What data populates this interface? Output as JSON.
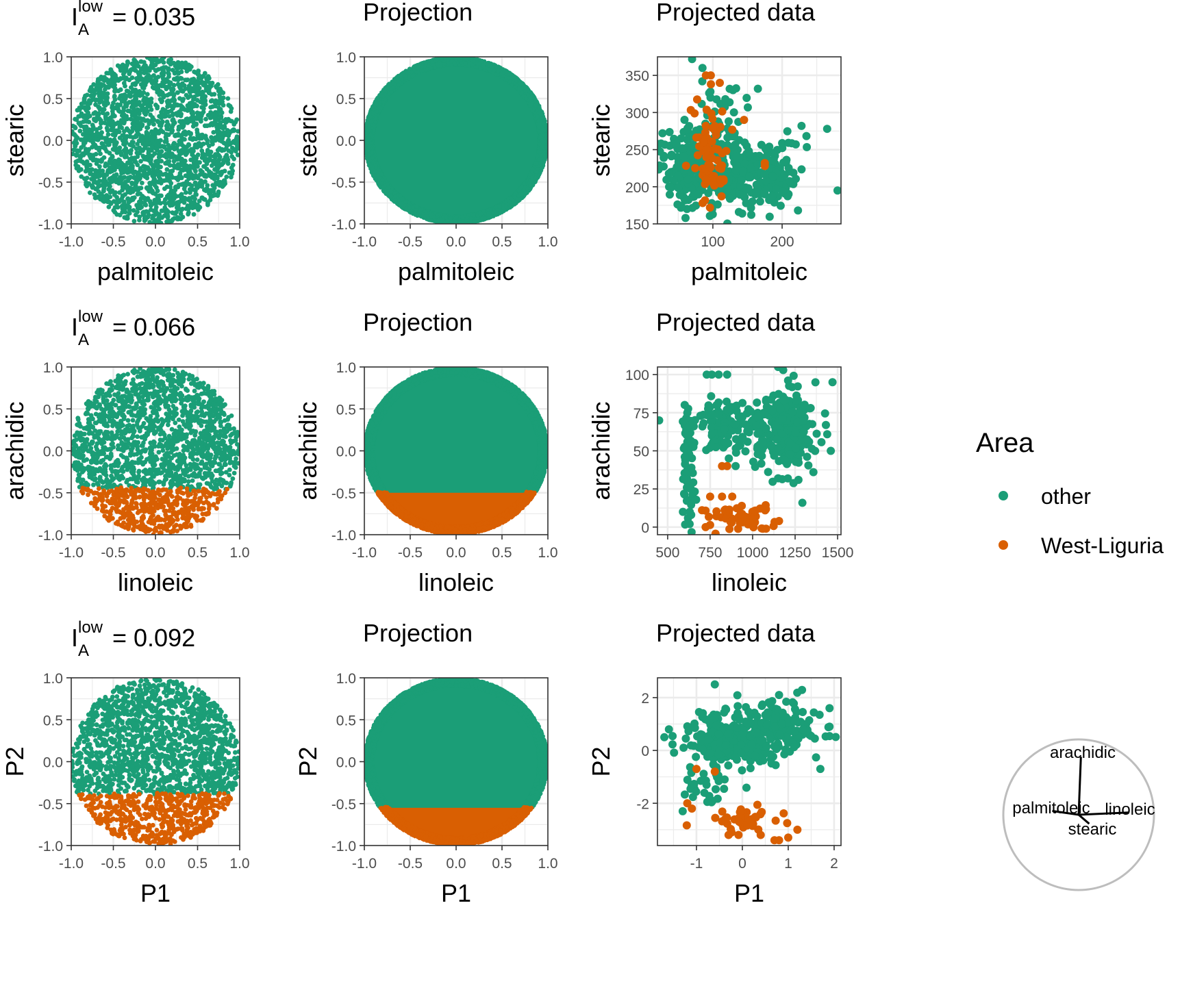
{
  "colors": {
    "other": "#1b9e77",
    "west_liguria": "#d95f02",
    "grid": "#ebebeb",
    "panel_border": "#333333",
    "axes_circle": "#bdbdbd"
  },
  "chart_data": [
    {
      "type": "scatter",
      "row": 0,
      "col": 0,
      "index_symbol": "I",
      "index_sup": "low",
      "index_sub": "A",
      "index_value": "= 0.035",
      "xlabel": "palmitoleic",
      "ylabel": "stearic",
      "xlim": [
        -1.0,
        1.0
      ],
      "ylim": [
        -1.0,
        1.0
      ],
      "xticks": [
        "-1.0",
        "-0.5",
        "0.0",
        "0.5",
        "1.0"
      ],
      "yticks": [
        "-1.0",
        "-0.5",
        "0.0",
        "0.5",
        "1.0"
      ],
      "distribution": "uniform-disk",
      "split_y": null,
      "n_points": 2200
    },
    {
      "type": "scatter",
      "row": 0,
      "col": 1,
      "title": "Projection",
      "xlabel": "palmitoleic",
      "ylabel": "stearic",
      "xlim": [
        -1.0,
        1.0
      ],
      "ylim": [
        -1.0,
        1.0
      ],
      "xticks": [
        "-1.0",
        "-0.5",
        "0.0",
        "0.5",
        "1.0"
      ],
      "yticks": [
        "-1.0",
        "-0.5",
        "0.0",
        "0.5",
        "1.0"
      ],
      "distribution": "filled-disk",
      "split_y": null,
      "n_points": 9000
    },
    {
      "type": "scatter",
      "row": 0,
      "col": 2,
      "title": "Projected data",
      "xlabel": "palmitoleic",
      "ylabel": "stearic",
      "xlim": [
        20,
        285
      ],
      "ylim": [
        150,
        375
      ],
      "xticks": [
        "100",
        "200"
      ],
      "yticks": [
        "150",
        "200",
        "250",
        "300",
        "350"
      ],
      "series": [
        {
          "name": "other",
          "color": "#1b9e77",
          "clusters": [
            {
              "cx": 70,
              "cy": 225,
              "sx": 25,
              "sy": 28,
              "n": 200
            },
            {
              "cx": 165,
              "cy": 215,
              "sx": 30,
              "sy": 25,
              "n": 220
            },
            {
              "cx": 110,
              "cy": 290,
              "sx": 25,
              "sy": 30,
              "n": 50
            }
          ],
          "points": [
            [
              70,
              372
            ],
            [
              85,
              360
            ],
            [
              118,
              318
            ],
            [
              165,
              332
            ],
            [
              228,
              282
            ],
            [
              265,
              278
            ],
            [
              280,
              195
            ]
          ]
        },
        {
          "name": "West-Liguria",
          "color": "#d95f02",
          "clusters": [
            {
              "cx": 97,
              "cy": 240,
              "sx": 12,
              "sy": 35,
              "n": 70
            }
          ],
          "points": [
            [
              90,
              350
            ],
            [
              97,
              350
            ],
            [
              110,
              340
            ],
            [
              145,
              290
            ],
            [
              175,
              228
            ],
            [
              175,
              232
            ]
          ]
        }
      ]
    },
    {
      "type": "scatter",
      "row": 1,
      "col": 0,
      "index_symbol": "I",
      "index_sup": "low",
      "index_sub": "A",
      "index_value": "= 0.066",
      "xlabel": "linoleic",
      "ylabel": "arachidic",
      "xlim": [
        -1.0,
        1.0
      ],
      "ylim": [
        -1.0,
        1.0
      ],
      "xticks": [
        "-1.0",
        "-0.5",
        "0.0",
        "0.5",
        "1.0"
      ],
      "yticks": [
        "-1.0",
        "-0.5",
        "0.0",
        "0.5",
        "1.0"
      ],
      "distribution": "uniform-disk",
      "split_y": -0.45,
      "n_points": 2200
    },
    {
      "type": "scatter",
      "row": 1,
      "col": 1,
      "title": "Projection",
      "xlabel": "linoleic",
      "ylabel": "arachidic",
      "xlim": [
        -1.0,
        1.0
      ],
      "ylim": [
        -1.0,
        1.0
      ],
      "xticks": [
        "-1.0",
        "-0.5",
        "0.0",
        "0.5",
        "1.0"
      ],
      "yticks": [
        "-1.0",
        "-0.5",
        "0.0",
        "0.5",
        "1.0"
      ],
      "distribution": "filled-disk",
      "split_y": -0.5,
      "n_points": 9000
    },
    {
      "type": "scatter",
      "row": 1,
      "col": 2,
      "title": "Projected data",
      "xlabel": "linoleic",
      "ylabel": "arachidic",
      "xlim": [
        440,
        1520
      ],
      "ylim": [
        -5,
        105
      ],
      "xticks": [
        "500",
        "750",
        "1000",
        "1250",
        "1500"
      ],
      "yticks": [
        "0",
        "25",
        "50",
        "75",
        "100"
      ],
      "series": [
        {
          "name": "other",
          "color": "#1b9e77",
          "clusters": [
            {
              "cx": 1200,
              "cy": 63,
              "sx": 90,
              "sy": 13,
              "n": 230
            },
            {
              "cx": 880,
              "cy": 68,
              "sx": 120,
              "sy": 9,
              "n": 120
            },
            {
              "cx": 620,
              "cy": 40,
              "sx": 20,
              "sy": 22,
              "n": 70
            }
          ],
          "points": [
            [
              450,
              70
            ],
            [
              590,
              10
            ],
            [
              630,
              10
            ],
            [
              730,
              100
            ],
            [
              760,
              100
            ],
            [
              800,
              100
            ],
            [
              850,
              100
            ],
            [
              1150,
              105
            ],
            [
              1180,
              103
            ],
            [
              1470,
              95
            ],
            [
              1460,
              50
            ],
            [
              1150,
              32
            ],
            [
              900,
              40
            ],
            [
              860,
              45
            ]
          ]
        },
        {
          "name": "West-Liguria",
          "color": "#d95f02",
          "clusters": [
            {
              "cx": 900,
              "cy": 6,
              "sx": 110,
              "sy": 5,
              "n": 60
            }
          ],
          "points": [
            [
              820,
              40
            ],
            [
              850,
              40
            ],
            [
              750,
              20
            ],
            [
              820,
              20
            ],
            [
              880,
              20
            ]
          ]
        }
      ]
    },
    {
      "type": "scatter",
      "row": 2,
      "col": 0,
      "index_symbol": "I",
      "index_sup": "low",
      "index_sub": "A",
      "index_value": "= 0.092",
      "xlabel": "P1",
      "ylabel": "P2",
      "xlim": [
        -1.0,
        1.0
      ],
      "ylim": [
        -1.0,
        1.0
      ],
      "xticks": [
        "-1.0",
        "-0.5",
        "0.0",
        "0.5",
        "1.0"
      ],
      "yticks": [
        "-1.0",
        "-0.5",
        "0.0",
        "0.5",
        "1.0"
      ],
      "distribution": "uniform-disk",
      "split_y": -0.38,
      "n_points": 2200
    },
    {
      "type": "scatter",
      "row": 2,
      "col": 1,
      "title": "Projection",
      "xlabel": "P1",
      "ylabel": "P2",
      "xlim": [
        -1.0,
        1.0
      ],
      "ylim": [
        -1.0,
        1.0
      ],
      "xticks": [
        "-1.0",
        "-0.5",
        "0.0",
        "0.5",
        "1.0"
      ],
      "yticks": [
        "-1.0",
        "-0.5",
        "0.0",
        "0.5",
        "1.0"
      ],
      "distribution": "filled-disk",
      "split_y": -0.55,
      "n_points": 9000
    },
    {
      "type": "scatter",
      "row": 2,
      "col": 2,
      "title": "Projected data",
      "xlabel": "P1",
      "ylabel": "P2",
      "xlim": [
        -1.85,
        2.15
      ],
      "ylim": [
        -3.6,
        2.75
      ],
      "xticks": [
        "-1",
        "0",
        "1",
        "2"
      ],
      "yticks": [
        "-2",
        "0",
        "2"
      ],
      "series": [
        {
          "name": "other",
          "color": "#1b9e77",
          "clusters": [
            {
              "cx": -0.2,
              "cy": 0.4,
              "sx": 0.45,
              "sy": 0.55,
              "n": 320
            },
            {
              "cx": 0.8,
              "cy": 0.9,
              "sx": 0.4,
              "sy": 0.5,
              "n": 130
            },
            {
              "cx": -0.8,
              "cy": -1.3,
              "sx": 0.3,
              "sy": 0.4,
              "n": 30
            }
          ],
          "points": [
            [
              -0.6,
              2.5
            ],
            [
              -1.7,
              0.5
            ],
            [
              -1.6,
              0.8
            ],
            [
              1.9,
              1.6
            ],
            [
              1.9,
              0.9
            ],
            [
              0.8,
              2.1
            ],
            [
              -1.3,
              -2.3
            ],
            [
              1.7,
              -0.7
            ]
          ]
        },
        {
          "name": "West-Liguria",
          "color": "#d95f02",
          "clusters": [
            {
              "cx": 0.1,
              "cy": -2.6,
              "sx": 0.35,
              "sy": 0.25,
              "n": 40
            }
          ],
          "points": [
            [
              -1.2,
              -2.0
            ],
            [
              -1.1,
              -2.2
            ],
            [
              -1.0,
              -0.7
            ],
            [
              -0.6,
              -0.8
            ],
            [
              0.7,
              -3.4
            ],
            [
              0.8,
              -3.4
            ],
            [
              1.0,
              -3.3
            ],
            [
              1.2,
              -3.0
            ],
            [
              0.4,
              -3.2
            ],
            [
              -0.3,
              -3.2
            ]
          ]
        }
      ]
    }
  ],
  "legend": {
    "title": "Area",
    "items": [
      {
        "label": "other",
        "color": "#1b9e77"
      },
      {
        "label": "West-Liguria",
        "color": "#d95f02"
      }
    ]
  },
  "axes_circle": {
    "axes": [
      {
        "label": "arachidic",
        "dx": 0.03,
        "dy": 0.77
      },
      {
        "label": "palmitoleic",
        "dx": -0.35,
        "dy": 0.05
      },
      {
        "label": "linoleic",
        "dx": 0.67,
        "dy": 0.03
      },
      {
        "label": "stearic",
        "dx": 0.14,
        "dy": -0.12
      }
    ]
  }
}
